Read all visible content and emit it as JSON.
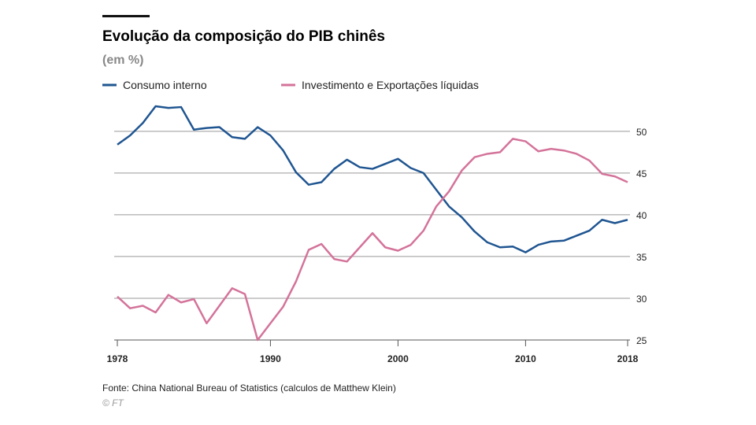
{
  "chart_data": {
    "type": "line",
    "title": "Evolução da composição do PIB chinês",
    "subtitle": "(em %)",
    "source": "Fonte: China National Bureau of Statistics (calculos de Matthew Klein)",
    "credit": "© FT",
    "x": [
      1978,
      1979,
      1980,
      1981,
      1982,
      1983,
      1984,
      1985,
      1986,
      1987,
      1988,
      1989,
      1990,
      1991,
      1992,
      1993,
      1994,
      1995,
      1996,
      1997,
      1998,
      1999,
      2000,
      2001,
      2002,
      2003,
      2004,
      2005,
      2006,
      2007,
      2008,
      2009,
      2010,
      2011,
      2012,
      2013,
      2014,
      2015,
      2016,
      2017,
      2018
    ],
    "series": [
      {
        "name": "Consumo interno",
        "color": "#1f5591",
        "values": [
          48.4,
          49.5,
          51.0,
          53.0,
          52.8,
          52.9,
          50.2,
          50.4,
          50.5,
          49.3,
          49.1,
          50.5,
          49.5,
          47.7,
          45.1,
          43.6,
          43.9,
          45.5,
          46.6,
          45.7,
          45.5,
          46.1,
          46.7,
          45.6,
          45.0,
          43.0,
          41.0,
          39.7,
          38.0,
          36.7,
          36.1,
          36.2,
          35.5,
          36.4,
          36.8,
          36.9,
          37.5,
          38.1,
          39.4,
          39.0,
          39.4
        ]
      },
      {
        "name": "Investimento e Exportações líquidas",
        "color": "#d4739a",
        "values": [
          30.2,
          28.8,
          29.1,
          28.3,
          30.4,
          29.5,
          29.9,
          27.0,
          29.1,
          31.2,
          30.5,
          25.0,
          27.0,
          29.0,
          32.0,
          35.8,
          36.5,
          34.7,
          34.4,
          36.1,
          37.8,
          36.1,
          35.7,
          36.4,
          38.1,
          41.0,
          42.8,
          45.3,
          46.9,
          47.3,
          47.5,
          49.1,
          48.8,
          47.6,
          47.9,
          47.7,
          47.3,
          46.5,
          44.9,
          44.6,
          43.9
        ]
      }
    ],
    "xlim": [
      1978,
      2018
    ],
    "xticks": [
      1978,
      1990,
      2000,
      2010,
      2018
    ],
    "ylim": [
      25,
      53
    ],
    "yticks": [
      25,
      30,
      35,
      40,
      45,
      50
    ],
    "grid": true
  }
}
